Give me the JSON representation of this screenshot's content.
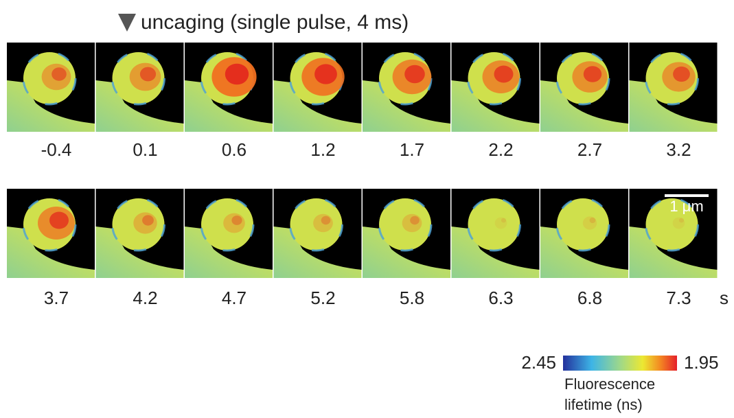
{
  "header": {
    "label": "uncaging (single pulse, 4 ms)"
  },
  "frames": {
    "rows": [
      {
        "times": [
          -0.4,
          0.1,
          0.6,
          1.2,
          1.7,
          2.2,
          2.7,
          3.2
        ]
      },
      {
        "times": [
          3.7,
          4.2,
          4.7,
          5.2,
          5.8,
          6.3,
          6.8,
          7.3
        ]
      }
    ],
    "unit": "s"
  },
  "scale_bar": {
    "label": "1 μm"
  },
  "colorbar": {
    "left_label": 2.45,
    "right_label": 1.95,
    "title": [
      "Fluorescence",
      "lifetime (ns)"
    ]
  }
}
